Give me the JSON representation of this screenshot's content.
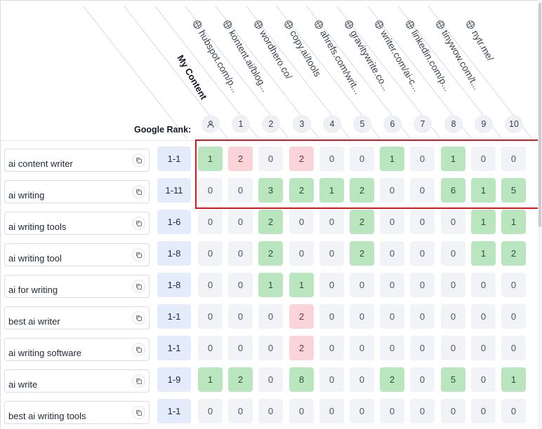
{
  "header": {
    "my_content_label": "My Content",
    "google_rank_label": "Google Rank:",
    "competitors": [
      {
        "label": "hubspot.com/p..."
      },
      {
        "label": "kontent.ai/blog..."
      },
      {
        "label": "wordhero.co/"
      },
      {
        "label": "copy.ai/tools"
      },
      {
        "label": "ahrefs.com/writ..."
      },
      {
        "label": "gravitywrite.co..."
      },
      {
        "label": "writer.com/ai-c..."
      },
      {
        "label": "linkedin.com/p..."
      },
      {
        "label": "tinywow.com/t..."
      },
      {
        "label": "nytr.me/"
      }
    ],
    "ranks": [
      "1",
      "2",
      "3",
      "4",
      "5",
      "6",
      "7",
      "8",
      "9",
      "10"
    ]
  },
  "colors": {
    "green": "#b9e6bf",
    "pink": "#fbd4d9",
    "neutral": "#f2f3f7",
    "range": "#e4ebfb",
    "highlight": "#e3131b"
  },
  "rows": [
    {
      "keyword": "ai content writer",
      "range": "1-1",
      "counts": [
        "1",
        "2",
        "0",
        "2",
        "0",
        "0",
        "1",
        "0",
        "1",
        "0",
        "0"
      ],
      "tones": [
        "g",
        "p",
        "n",
        "p",
        "n",
        "n",
        "g",
        "n",
        "g",
        "n",
        "n"
      ]
    },
    {
      "keyword": "ai writing",
      "range": "1-11",
      "counts": [
        "0",
        "0",
        "3",
        "2",
        "1",
        "2",
        "0",
        "0",
        "6",
        "1",
        "5"
      ],
      "tones": [
        "n",
        "n",
        "g",
        "g",
        "g",
        "g",
        "n",
        "n",
        "g",
        "g",
        "g"
      ]
    },
    {
      "keyword": "ai writing tools",
      "range": "1-6",
      "counts": [
        "0",
        "0",
        "2",
        "0",
        "0",
        "2",
        "0",
        "0",
        "0",
        "1",
        "1"
      ],
      "tones": [
        "n",
        "n",
        "g",
        "n",
        "n",
        "g",
        "n",
        "n",
        "n",
        "g",
        "g"
      ]
    },
    {
      "keyword": "ai writing tool",
      "range": "1-8",
      "counts": [
        "0",
        "0",
        "2",
        "0",
        "0",
        "2",
        "0",
        "0",
        "0",
        "1",
        "2"
      ],
      "tones": [
        "n",
        "n",
        "g",
        "n",
        "n",
        "g",
        "n",
        "n",
        "n",
        "g",
        "g"
      ]
    },
    {
      "keyword": "ai for writing",
      "range": "1-8",
      "counts": [
        "0",
        "0",
        "1",
        "1",
        "0",
        "0",
        "0",
        "0",
        "0",
        "0",
        "0"
      ],
      "tones": [
        "n",
        "n",
        "g",
        "g",
        "n",
        "n",
        "n",
        "n",
        "n",
        "n",
        "n"
      ]
    },
    {
      "keyword": "best ai writer",
      "range": "1-1",
      "counts": [
        "0",
        "0",
        "0",
        "2",
        "0",
        "0",
        "0",
        "0",
        "0",
        "0",
        "0"
      ],
      "tones": [
        "n",
        "n",
        "n",
        "p",
        "n",
        "n",
        "n",
        "n",
        "n",
        "n",
        "n"
      ]
    },
    {
      "keyword": "ai writing software",
      "range": "1-1",
      "counts": [
        "0",
        "0",
        "0",
        "2",
        "0",
        "0",
        "0",
        "0",
        "0",
        "0",
        "0"
      ],
      "tones": [
        "n",
        "n",
        "n",
        "p",
        "n",
        "n",
        "n",
        "n",
        "n",
        "n",
        "n"
      ]
    },
    {
      "keyword": "ai write",
      "range": "1-9",
      "counts": [
        "1",
        "2",
        "0",
        "8",
        "0",
        "0",
        "2",
        "0",
        "5",
        "0",
        "1"
      ],
      "tones": [
        "g",
        "g",
        "n",
        "g",
        "n",
        "n",
        "g",
        "n",
        "g",
        "n",
        "g"
      ]
    },
    {
      "keyword": "best ai writing tools",
      "range": "1-1",
      "counts": [
        "0",
        "0",
        "0",
        "0",
        "0",
        "0",
        "0",
        "0",
        "0",
        "0",
        "0"
      ],
      "tones": [
        "n",
        "n",
        "n",
        "n",
        "n",
        "n",
        "n",
        "n",
        "n",
        "n",
        "n"
      ]
    }
  ]
}
